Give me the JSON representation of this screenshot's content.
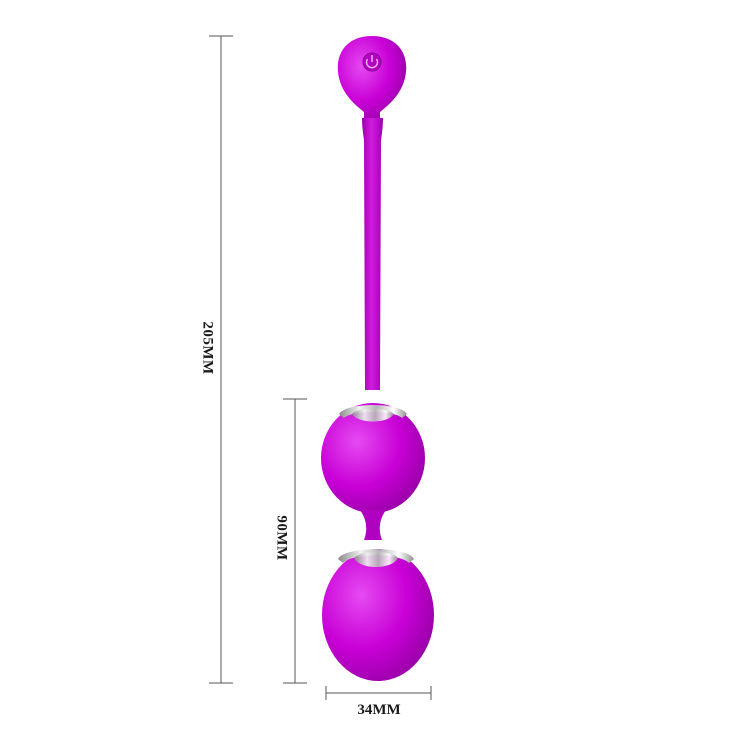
{
  "dimensions": {
    "total_length": "205MM",
    "balls_length": "90MM",
    "ball_width": "34MM"
  },
  "colors": {
    "body": "#c800d6",
    "body_highlight": "#e63cf0",
    "body_shadow": "#9a00a8",
    "metal": "#c8c8c8",
    "dimension_line": "#555555"
  },
  "icons": {
    "power_button": "power-icon"
  }
}
